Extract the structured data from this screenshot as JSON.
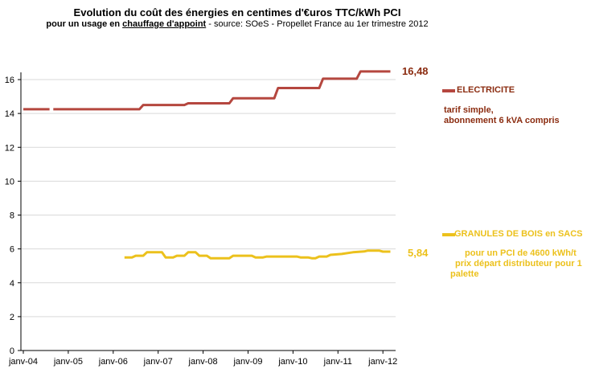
{
  "header": {
    "title": "Evolution du coût des énergies en centimes d'€uros TTC/kWh PCI",
    "subtitle_pre": "pour un usage en ",
    "subtitle_underlined": "chauffage d'appoint",
    "subtitle_post": " - source: SOeS - Propellet France au 1er trimestre 2012"
  },
  "legend": {
    "electricite": {
      "label": "ELECTRICITE",
      "note_line1": "tarif simple,",
      "note_line2": "abonnement 6 kVA compris",
      "end_value": "16,48"
    },
    "granules": {
      "label": "GRANULES DE BOIS en SACS",
      "note_line1": "pour un PCI de 4600 kWh/t",
      "note_line2": "prix départ distributeur pour 1",
      "note_line3": "palette",
      "end_value": "5,84"
    }
  },
  "colors": {
    "electricite": "#b5473f",
    "granules": "#ecc11c",
    "text_elec": "#8b2c10",
    "text_gran": "#ecc11c"
  },
  "chart_data": {
    "type": "line",
    "title": "Evolution du coût des énergies en centimes d'€uros TTC/kWh PCI",
    "xlabel": "",
    "ylabel": "",
    "x_tick_labels": [
      "janv-04",
      "janv-05",
      "janv-06",
      "janv-07",
      "janv-08",
      "janv-09",
      "janv-10",
      "janv-11",
      "janv-12"
    ],
    "y_ticks": [
      0,
      2,
      4,
      6,
      8,
      10,
      12,
      14,
      16
    ],
    "ylim": [
      0,
      16.5
    ],
    "xlim": [
      "2004-01",
      "2012-03"
    ],
    "grid": "horizontal",
    "series": [
      {
        "name": "ELECTRICITE",
        "segments": [
          [
            [
              "2004-01",
              14.25
            ],
            [
              "2004-08",
              14.25
            ]
          ],
          [
            [
              "2004-09",
              14.25
            ],
            [
              "2006-08",
              14.25
            ],
            [
              "2006-09",
              14.5
            ],
            [
              "2007-08",
              14.5
            ],
            [
              "2007-09",
              14.6
            ],
            [
              "2008-08",
              14.6
            ],
            [
              "2008-09",
              14.9
            ],
            [
              "2009-08",
              14.9
            ],
            [
              "2009-09",
              15.5
            ],
            [
              "2010-08",
              15.5
            ],
            [
              "2010-09",
              16.05
            ],
            [
              "2011-06",
              16.05
            ],
            [
              "2011-07",
              16.48
            ],
            [
              "2012-03",
              16.48
            ]
          ]
        ]
      },
      {
        "name": "GRANULES DE BOIS en SACS",
        "segments": [
          [
            [
              "2006-04",
              5.5
            ],
            [
              "2006-06",
              5.5
            ],
            [
              "2006-07",
              5.6
            ],
            [
              "2006-09",
              5.6
            ],
            [
              "2006-10",
              5.8
            ],
            [
              "2007-02",
              5.8
            ],
            [
              "2007-03",
              5.5
            ],
            [
              "2007-05",
              5.5
            ],
            [
              "2007-06",
              5.6
            ],
            [
              "2007-08",
              5.6
            ],
            [
              "2007-09",
              5.8
            ],
            [
              "2007-11",
              5.8
            ],
            [
              "2007-12",
              5.6
            ],
            [
              "2008-02",
              5.6
            ],
            [
              "2008-03",
              5.45
            ],
            [
              "2008-08",
              5.45
            ],
            [
              "2008-09",
              5.6
            ],
            [
              "2009-02",
              5.6
            ],
            [
              "2009-03",
              5.5
            ],
            [
              "2009-05",
              5.5
            ],
            [
              "2009-06",
              5.55
            ],
            [
              "2010-02",
              5.55
            ],
            [
              "2010-03",
              5.5
            ],
            [
              "2010-05",
              5.5
            ],
            [
              "2010-06",
              5.45
            ],
            [
              "2010-07",
              5.45
            ],
            [
              "2010-08",
              5.55
            ],
            [
              "2010-10",
              5.55
            ],
            [
              "2010-11",
              5.65
            ],
            [
              "2011-02",
              5.7
            ],
            [
              "2011-05",
              5.8
            ],
            [
              "2011-08",
              5.85
            ],
            [
              "2011-09",
              5.9
            ],
            [
              "2011-12",
              5.9
            ],
            [
              "2012-01",
              5.84
            ],
            [
              "2012-03",
              5.84
            ]
          ]
        ]
      }
    ]
  }
}
